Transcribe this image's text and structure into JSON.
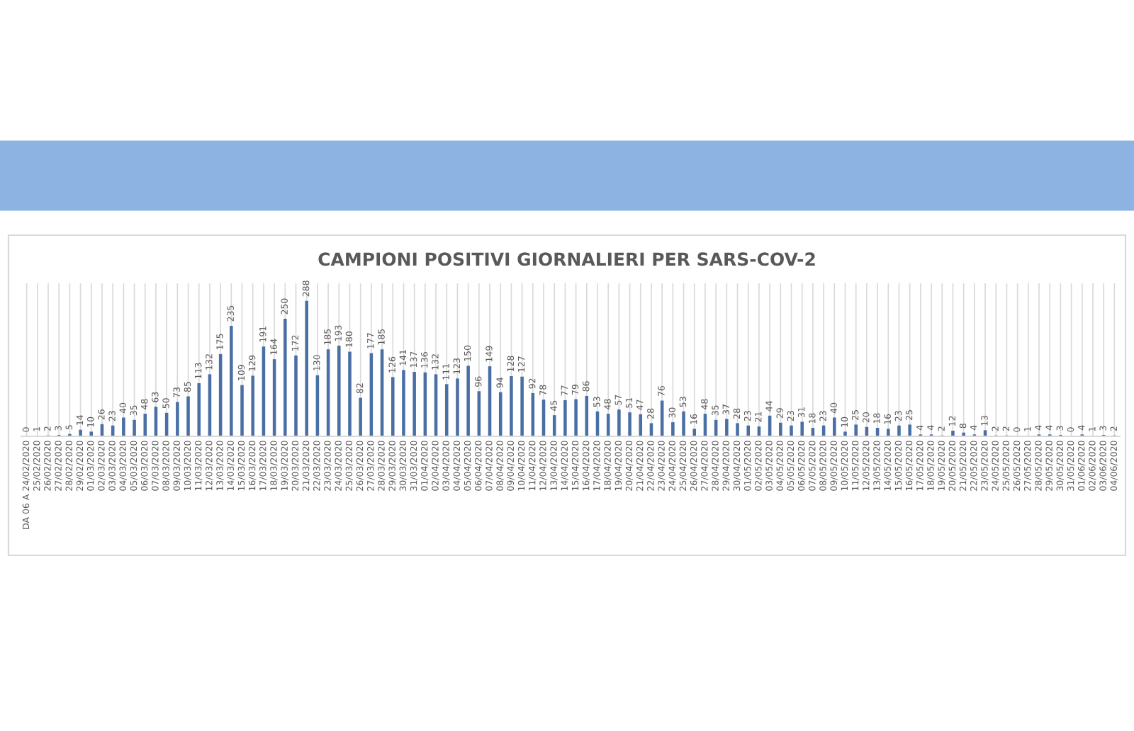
{
  "chart_data": {
    "type": "bar",
    "title": "CAMPIONI POSITIVI GIORNALIERI PER SARS-COV-2",
    "categories": [
      "DA 06 A 24/02/2020",
      "25/02/2020",
      "26/02/2020",
      "27/02/2020",
      "28/02/2020",
      "29/02/2020",
      "01/03/2020",
      "02/03/2020",
      "03/03/2020",
      "04/03/2020",
      "05/03/2020",
      "06/03/2020",
      "07/03/2020",
      "08/03/2020",
      "09/03/2020",
      "10/03/2020",
      "11/03/2020",
      "12/03/2020",
      "13/03/2020",
      "14/03/2020",
      "15/03/2020",
      "16/03/2020",
      "17/03/2020",
      "18/03/2020",
      "19/03/2020",
      "20/03/2020",
      "21/03/2020",
      "22/03/2020",
      "23/03/2020",
      "24/03/2020",
      "25/03/2020",
      "26/03/2020",
      "27/03/2020",
      "28/03/2020",
      "29/03/2020",
      "30/03/2020",
      "31/03/2020",
      "01/04/2020",
      "02/04/2020",
      "03/04/2020",
      "04/04/2020",
      "05/04/2020",
      "06/04/2020",
      "07/04/2020",
      "08/04/2020",
      "09/04/2020",
      "10/04/2020",
      "11/04/2020",
      "12/04/2020",
      "13/04/2020",
      "14/04/2020",
      "15/04/2020",
      "16/04/2020",
      "17/04/2020",
      "18/04/2020",
      "19/04/2020",
      "20/04/2020",
      "21/04/2020",
      "22/04/2020",
      "23/04/2020",
      "24/04/2020",
      "25/04/2020",
      "26/04/2020",
      "27/04/2020",
      "28/04/2020",
      "29/04/2020",
      "30/04/2020",
      "01/05/2020",
      "02/05/2020",
      "03/05/2020",
      "04/05/2020",
      "05/05/2020",
      "06/05/2020",
      "07/05/2020",
      "08/05/2020",
      "09/05/2020",
      "10/05/2020",
      "11/05/2020",
      "12/05/2020",
      "13/05/2020",
      "14/05/2020",
      "15/05/2020",
      "16/05/2020",
      "17/05/2020",
      "18/05/2020",
      "19/05/2020",
      "20/05/2020",
      "21/05/2020",
      "22/05/2020",
      "23/05/2020",
      "24/05/2020",
      "25/05/2020",
      "26/05/2020",
      "27/05/2020",
      "28/05/2020",
      "29/05/2020",
      "30/05/2020",
      "31/05/2020",
      "01/06/2020",
      "02/06/2020",
      "03/06/2020",
      "04/06/2020"
    ],
    "values": [
      0,
      1,
      2,
      3,
      5,
      14,
      10,
      26,
      23,
      40,
      35,
      48,
      63,
      50,
      73,
      85,
      113,
      132,
      175,
      235,
      109,
      129,
      191,
      164,
      250,
      172,
      288,
      130,
      185,
      193,
      180,
      82,
      177,
      185,
      126,
      141,
      137,
      136,
      132,
      111,
      123,
      150,
      96,
      149,
      94,
      128,
      127,
      92,
      78,
      45,
      77,
      79,
      86,
      53,
      48,
      57,
      51,
      47,
      28,
      76,
      30,
      53,
      16,
      48,
      35,
      37,
      28,
      23,
      21,
      44,
      29,
      23,
      31,
      18,
      23,
      40,
      10,
      25,
      20,
      18,
      16,
      23,
      25,
      4,
      4,
      2,
      12,
      8,
      4,
      13,
      2,
      2,
      0,
      1,
      4,
      4,
      3,
      0,
      4,
      1,
      3,
      2
    ],
    "color": "#4a6fa5",
    "data_labels": true,
    "grid": "x"
  }
}
